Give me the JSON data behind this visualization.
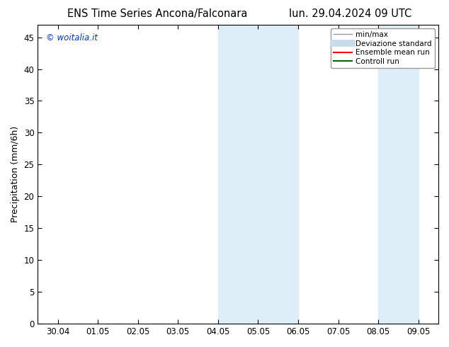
{
  "title_left": "ENS Time Series Ancona/Falconara",
  "title_right": "lun. 29.04.2024 09 UTC",
  "ylabel": "Precipitation (mm/6h)",
  "watermark": "© woitalia.it",
  "watermark_color": "#0033cc",
  "x_tick_labels": [
    "30.04",
    "01.05",
    "02.05",
    "03.05",
    "04.05",
    "05.05",
    "06.05",
    "07.05",
    "08.05",
    "09.05"
  ],
  "x_tick_positions": [
    0,
    1,
    2,
    3,
    4,
    5,
    6,
    7,
    8,
    9
  ],
  "ylim": [
    0,
    47
  ],
  "yticks": [
    0,
    5,
    10,
    15,
    20,
    25,
    30,
    35,
    40,
    45
  ],
  "xlim": [
    -0.5,
    9.5
  ],
  "background_color": "#ffffff",
  "plot_bg_color": "#ffffff",
  "shaded_regions": [
    {
      "x_start": 4.0,
      "x_end": 6.0,
      "color": "#ddeef8"
    },
    {
      "x_start": 8.0,
      "x_end": 9.0,
      "color": "#ddeef8"
    }
  ],
  "legend_entries": [
    {
      "label": "min/max",
      "color": "#999999",
      "lw": 1.0,
      "style": "-"
    },
    {
      "label": "Deviazione standard",
      "color": "#c8dcea",
      "lw": 7,
      "style": "-"
    },
    {
      "label": "Ensemble mean run",
      "color": "#ff0000",
      "lw": 1.5,
      "style": "-"
    },
    {
      "label": "Controll run",
      "color": "#006600",
      "lw": 1.5,
      "style": "-"
    }
  ],
  "title_fontsize": 10.5,
  "axis_fontsize": 9,
  "tick_fontsize": 8.5,
  "legend_fontsize": 7.5,
  "watermark_fontsize": 8.5
}
